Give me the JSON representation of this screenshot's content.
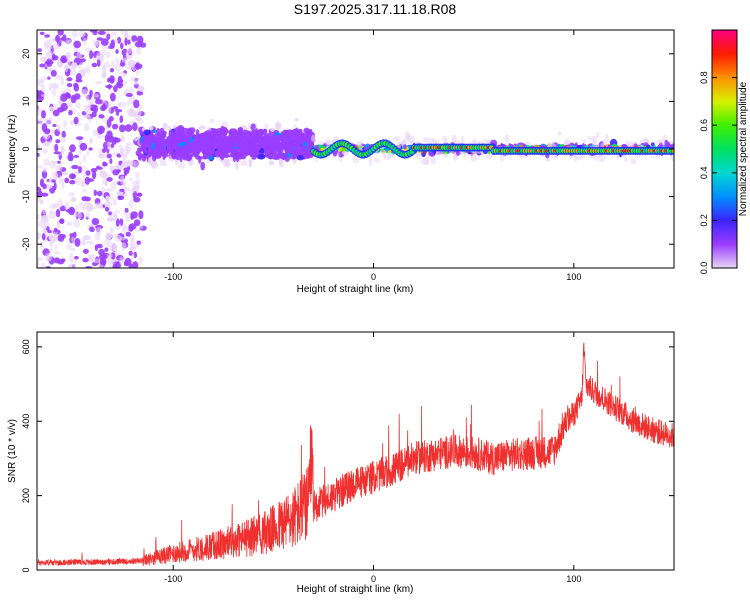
{
  "title": "S197.2025.317.11.18.R08",
  "chart_data": [
    {
      "type": "heatmap",
      "title": "S197.2025.317.11.18.R08",
      "xlabel": "Height of straight line (km)",
      "ylabel": "Frequency (Hz)",
      "xlim": [
        -168,
        150
      ],
      "ylim": [
        -25,
        25
      ],
      "xticks": [
        -100,
        0,
        100
      ],
      "yticks": [
        -20,
        -10,
        0,
        10,
        20
      ],
      "colorbar": {
        "label": "Normalized spectral amplitude",
        "range": [
          0,
          1
        ],
        "ticks": [
          "0.0",
          "0.2",
          "0.4",
          "0.6",
          "0.8"
        ]
      },
      "regions": [
        {
          "x_range": [
            -168,
            -115
          ],
          "description_value": "broadband noise",
          "freq_spread": 25,
          "amplitude": 0.15
        },
        {
          "x_range": [
            -115,
            -30
          ],
          "freq_center": 1,
          "freq_spread": 6,
          "amplitude": 0.3
        },
        {
          "x_range": [
            -30,
            150
          ],
          "freq_center": 0,
          "freq_spread": 1.5,
          "amplitude": 0.95
        }
      ]
    },
    {
      "type": "line",
      "title": "",
      "xlabel": "Height of straight line (km)",
      "ylabel": "SNR (10 * v/v)",
      "xlim": [
        -168,
        150
      ],
      "ylim": [
        0,
        640
      ],
      "xticks": [
        -100,
        0,
        100
      ],
      "yticks": [
        0,
        200,
        400,
        600
      ],
      "color": "#f0302e",
      "series": [
        {
          "name": "SNR",
          "x": [
            -168,
            -150,
            -130,
            -115,
            -100,
            -80,
            -60,
            -50,
            -40,
            -32,
            -31,
            -30,
            -20,
            -10,
            0,
            10,
            20,
            30,
            40,
            50,
            60,
            70,
            80,
            90,
            95,
            100,
            104,
            105,
            106,
            110,
            120,
            130,
            140,
            150
          ],
          "y": [
            20,
            20,
            22,
            25,
            45,
            65,
            90,
            110,
            140,
            180,
            320,
            170,
            200,
            230,
            250,
            270,
            300,
            310,
            320,
            315,
            300,
            310,
            315,
            320,
            390,
            420,
            460,
            600,
            500,
            480,
            440,
            400,
            375,
            360
          ]
        }
      ]
    }
  ]
}
